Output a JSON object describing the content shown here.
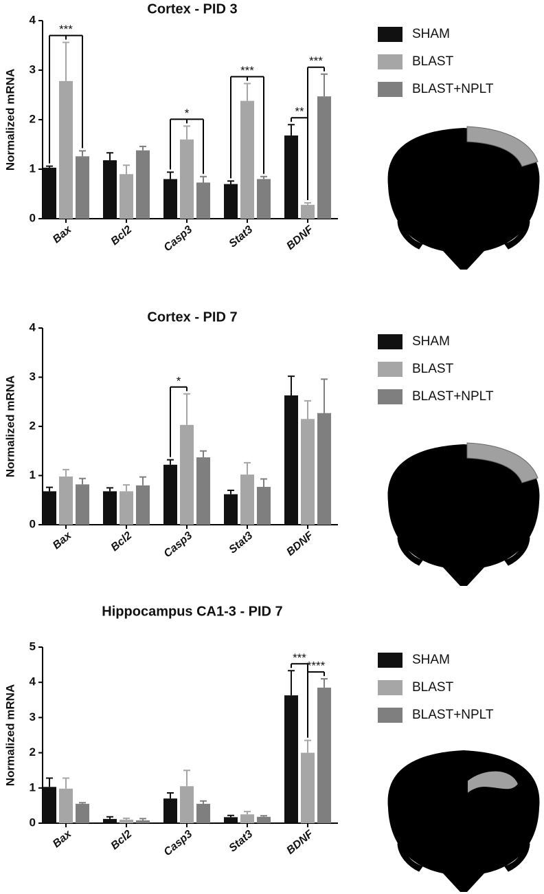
{
  "chart_data": [
    {
      "type": "bar",
      "title": "Cortex - PID 3",
      "ylabel": "Normalized mRNA",
      "categories": [
        "Bax",
        "Bcl2",
        "Casp3",
        "Stat3",
        "BDNF"
      ],
      "series": [
        {
          "name": "SHAM",
          "color": "#111111",
          "values": [
            1.03,
            1.18,
            0.8,
            0.7,
            1.68
          ],
          "errors": [
            0.03,
            0.15,
            0.14,
            0.06,
            0.22
          ]
        },
        {
          "name": "BLAST",
          "color": "#a6a6a6",
          "values": [
            2.78,
            0.9,
            1.6,
            2.38,
            0.28
          ],
          "errors": [
            0.78,
            0.18,
            0.27,
            0.35,
            0.04
          ]
        },
        {
          "name": "BLAST+NPLT",
          "color": "#7f7f7f",
          "values": [
            1.26,
            1.38,
            0.73,
            0.8,
            2.47
          ],
          "errors": [
            0.11,
            0.08,
            0.12,
            0.05,
            0.45
          ]
        }
      ],
      "ylim": [
        0,
        4
      ],
      "yticks": [
        0,
        1,
        2,
        3,
        4
      ],
      "annotations": [
        {
          "text": "***",
          "category": "Bax",
          "series": [
            "SHAM",
            "BLAST",
            "BLAST+NPLT"
          ]
        },
        {
          "text": "*",
          "category": "Casp3",
          "series": [
            "SHAM",
            "BLAST",
            "BLAST+NPLT"
          ]
        },
        {
          "text": "***",
          "category": "Stat3",
          "series": [
            "SHAM",
            "BLAST",
            "BLAST+NPLT"
          ]
        },
        {
          "text": "**",
          "category": "BDNF",
          "series": [
            "SHAM",
            "BLAST"
          ]
        },
        {
          "text": "***",
          "category": "BDNF",
          "series": [
            "BLAST",
            "BLAST+NPLT"
          ]
        }
      ]
    },
    {
      "type": "bar",
      "title": "Cortex - PID 7",
      "ylabel": "Normalized mRNA",
      "categories": [
        "Bax",
        "Bcl2",
        "Casp3",
        "Stat3",
        "BDNF"
      ],
      "series": [
        {
          "name": "SHAM",
          "color": "#111111",
          "values": [
            0.68,
            0.68,
            1.22,
            0.62,
            2.63
          ],
          "errors": [
            0.08,
            0.07,
            0.1,
            0.08,
            0.39
          ]
        },
        {
          "name": "BLAST",
          "color": "#a6a6a6",
          "values": [
            0.98,
            0.68,
            2.03,
            1.02,
            2.15
          ],
          "errors": [
            0.14,
            0.13,
            0.63,
            0.24,
            0.37
          ]
        },
        {
          "name": "BLAST+NPLT",
          "color": "#7f7f7f",
          "values": [
            0.82,
            0.8,
            1.37,
            0.77,
            2.27
          ],
          "errors": [
            0.12,
            0.17,
            0.13,
            0.16,
            0.69
          ]
        }
      ],
      "ylim": [
        0,
        4
      ],
      "yticks": [
        0,
        1,
        2,
        3,
        4
      ],
      "annotations": [
        {
          "text": "*",
          "category": "Casp3",
          "series": [
            "SHAM",
            "BLAST"
          ]
        }
      ]
    },
    {
      "type": "bar",
      "title": "Hippocampus CA1-3 - PID 7",
      "ylabel": "Normalized mRNA",
      "categories": [
        "Bax",
        "Bcl2",
        "Casp3",
        "Stat3",
        "BDNF"
      ],
      "series": [
        {
          "name": "SHAM",
          "color": "#111111",
          "values": [
            1.03,
            0.12,
            0.7,
            0.17,
            3.63
          ],
          "errors": [
            0.25,
            0.06,
            0.16,
            0.05,
            0.7
          ]
        },
        {
          "name": "BLAST",
          "color": "#a6a6a6",
          "values": [
            0.98,
            0.1,
            1.05,
            0.25,
            2.0
          ],
          "errors": [
            0.3,
            0.04,
            0.45,
            0.08,
            0.35
          ]
        },
        {
          "name": "BLAST+NPLT",
          "color": "#7f7f7f",
          "values": [
            0.55,
            0.08,
            0.55,
            0.18,
            3.85
          ],
          "errors": [
            0.03,
            0.05,
            0.08,
            0.03,
            0.25
          ]
        }
      ],
      "ylim": [
        0,
        5
      ],
      "yticks": [
        0,
        1,
        2,
        3,
        4,
        5
      ],
      "annotations": [
        {
          "text": "***",
          "category": "BDNF",
          "series": [
            "SHAM",
            "BLAST"
          ]
        },
        {
          "text": "****",
          "category": "BDNF",
          "series": [
            "BLAST",
            "BLAST+NPLT"
          ]
        }
      ]
    }
  ]
}
